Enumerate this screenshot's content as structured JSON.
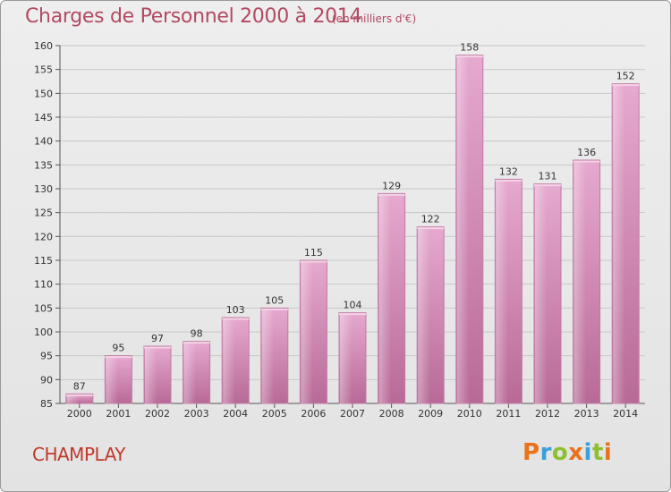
{
  "header": {
    "title": "Charges de Personnel 2000 à 2014",
    "subtitle": "(en milliers d'€)"
  },
  "footer": {
    "commune": "CHAMPLAY",
    "logo_text": "Proxiti"
  },
  "colors": {
    "title": "#b24a63",
    "commune": "#c0392b",
    "bar_light": "#e6a9cf",
    "bar_dark": "#b86a97",
    "logo_letters": [
      "#e8731c",
      "#3b9fd8",
      "#8dbf2e",
      "#e8731c",
      "#3b9fd8",
      "#8dbf2e",
      "#e8731c"
    ]
  },
  "chart_data": {
    "type": "bar",
    "categories": [
      "2000",
      "2001",
      "2002",
      "2003",
      "2004",
      "2005",
      "2006",
      "2007",
      "2008",
      "2009",
      "2010",
      "2011",
      "2012",
      "2013",
      "2014"
    ],
    "values": [
      87,
      95,
      97,
      98,
      103,
      105,
      115,
      104,
      129,
      122,
      158,
      132,
      131,
      136,
      152
    ],
    "ylim": [
      85,
      160
    ],
    "yticks": [
      85,
      90,
      95,
      100,
      105,
      110,
      115,
      120,
      125,
      130,
      135,
      140,
      145,
      150,
      155,
      160
    ],
    "grid": true,
    "data_labels": true
  }
}
